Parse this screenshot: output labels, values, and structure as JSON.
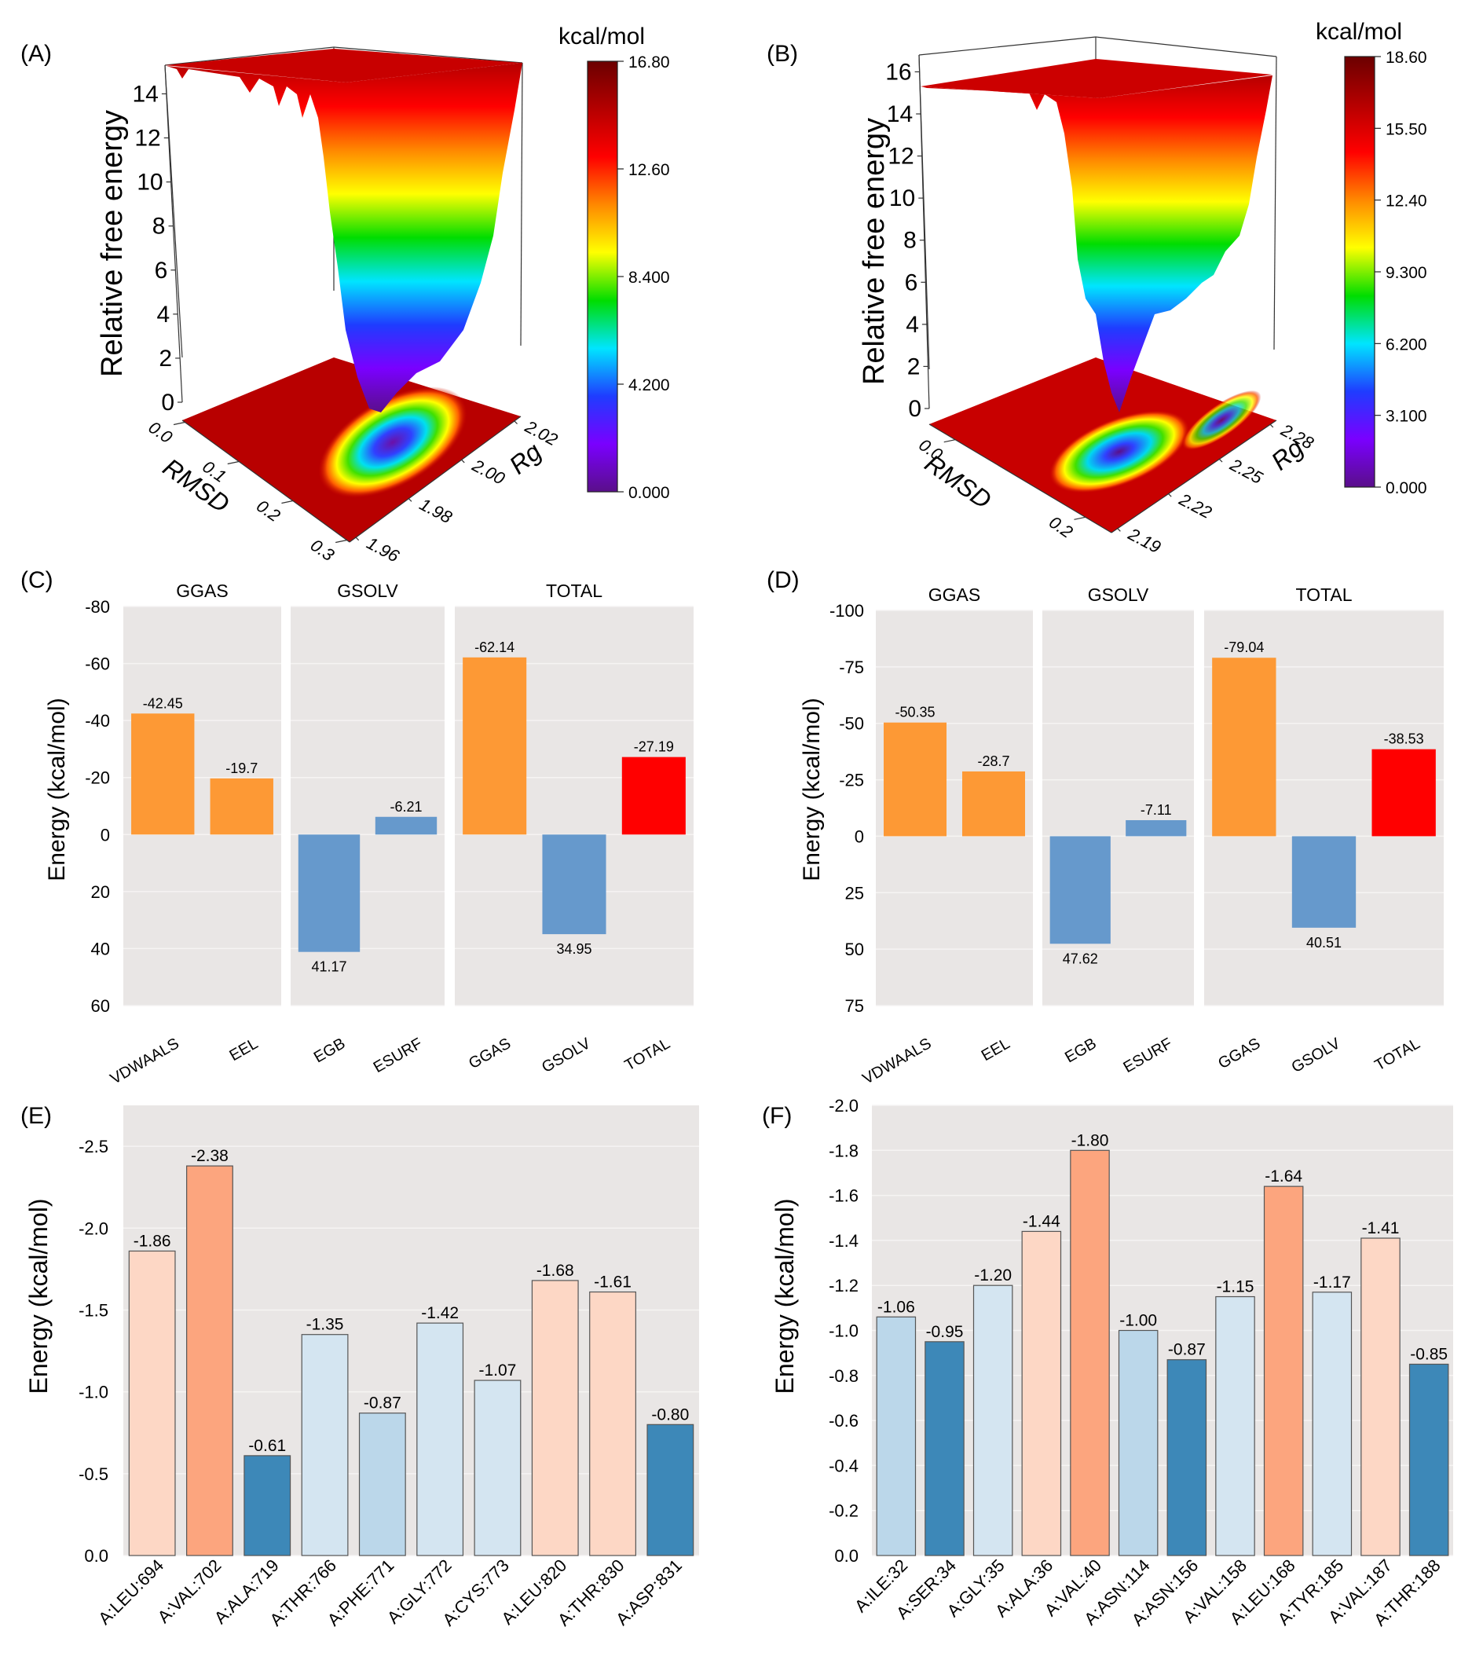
{
  "figure": {
    "panels": [
      "(A)",
      "(B)",
      "(C)",
      "(D)",
      "(E)",
      "(F)"
    ]
  },
  "chart_data": [
    {
      "id": "A",
      "panel_label": "(A)",
      "type": "surface3d",
      "zlabel": "Relative free energy",
      "xlabel": "RMSD",
      "ylabel": "Rg",
      "z_ticks": [
        "0",
        "2",
        "4",
        "6",
        "8",
        "10",
        "12",
        "14"
      ],
      "x_ticks": [
        "0.0",
        "0.1",
        "0.2",
        "0.3"
      ],
      "y_ticks": [
        "1.96",
        "1.98",
        "2.00",
        "2.02"
      ],
      "zlim": [
        0,
        15.3
      ],
      "minimum": {
        "rmsd": 0.2,
        "rg": 1.99,
        "energy": 0
      },
      "colorbar": {
        "title": "kcal/mol",
        "ticks": [
          "16.80",
          "12.60",
          "8.400",
          "4.200",
          "0.000"
        ],
        "range": [
          0,
          16.8
        ],
        "colormap": [
          "#5a0f8a",
          "#7a00ff",
          "#1f3cff",
          "#00e5ff",
          "#00dd00",
          "#ffff00",
          "#ff8800",
          "#ff0000",
          "#b50000",
          "#6b0000"
        ]
      }
    },
    {
      "id": "B",
      "panel_label": "(B)",
      "type": "surface3d",
      "zlabel": "Relative free energy",
      "xlabel": "RMSD",
      "ylabel": "Rg",
      "z_ticks": [
        "0",
        "2",
        "4",
        "6",
        "8",
        "10",
        "12",
        "14",
        "16"
      ],
      "x_ticks": [
        "0.0",
        "0.2"
      ],
      "y_ticks": [
        "2.19",
        "2.22",
        "2.25",
        "2.28"
      ],
      "zlim": [
        0,
        16.8
      ],
      "minimum": {
        "rmsd": 0.2,
        "rg": 2.23,
        "energy": 0
      },
      "colorbar": {
        "title": "kcal/mol",
        "ticks": [
          "18.60",
          "15.50",
          "12.40",
          "9.300",
          "6.200",
          "3.100",
          "0.000"
        ],
        "range": [
          0,
          18.6
        ],
        "colormap": [
          "#5a0f8a",
          "#7a00ff",
          "#1f3cff",
          "#00e5ff",
          "#00dd00",
          "#ffff00",
          "#ff8800",
          "#ff0000",
          "#b50000",
          "#6b0000"
        ]
      }
    },
    {
      "id": "C",
      "panel_label": "(C)",
      "type": "bar",
      "ylabel": "Energy (kcal/mol)",
      "ylim": [
        -80,
        60
      ],
      "y_inverted": true,
      "yticks": [
        -80,
        -60,
        -40,
        -20,
        0,
        20,
        40,
        60
      ],
      "ytick_labels": [
        "-80",
        "-60",
        "-40",
        "-20",
        "0",
        "20",
        "40",
        "60"
      ],
      "facets": [
        {
          "title": "GGAS",
          "bars": [
            {
              "category": "VDWAALS",
              "value": -42.45,
              "label": "-42.45",
              "color": "#fd9935"
            },
            {
              "category": "EEL",
              "value": -19.7,
              "label": "-19.7",
              "color": "#fd9935"
            }
          ]
        },
        {
          "title": "GSOLV",
          "bars": [
            {
              "category": "EGB",
              "value": 41.17,
              "label": "41.17",
              "color": "#6699cc"
            },
            {
              "category": "ESURF",
              "value": -6.21,
              "label": "-6.21",
              "color": "#6699cc"
            }
          ]
        },
        {
          "title": "TOTAL",
          "bars": [
            {
              "category": "GGAS",
              "value": -62.14,
              "label": "-62.14",
              "color": "#fd9935"
            },
            {
              "category": "GSOLV",
              "value": 34.95,
              "label": "34.95",
              "color": "#6699cc"
            },
            {
              "category": "TOTAL",
              "value": -27.19,
              "label": "-27.19",
              "color": "#ff0000"
            }
          ]
        }
      ]
    },
    {
      "id": "D",
      "panel_label": "(D)",
      "type": "bar",
      "ylabel": "Energy (kcal/mol)",
      "ylim": [
        -100,
        75
      ],
      "y_inverted": true,
      "yticks": [
        -100,
        -75,
        -50,
        -25,
        0,
        25,
        50,
        75
      ],
      "ytick_labels": [
        "-100",
        "-75",
        "-50",
        "-25",
        "0",
        "25",
        "50",
        "75"
      ],
      "facets": [
        {
          "title": "GGAS",
          "bars": [
            {
              "category": "VDWAALS",
              "value": -50.35,
              "label": "-50.35",
              "color": "#fd9935"
            },
            {
              "category": "EEL",
              "value": -28.7,
              "label": "-28.7",
              "color": "#fd9935"
            }
          ]
        },
        {
          "title": "GSOLV",
          "bars": [
            {
              "category": "EGB",
              "value": 47.62,
              "label": "47.62",
              "color": "#6699cc"
            },
            {
              "category": "ESURF",
              "value": -7.11,
              "label": "-7.11",
              "color": "#6699cc"
            }
          ]
        },
        {
          "title": "TOTAL",
          "bars": [
            {
              "category": "GGAS",
              "value": -79.04,
              "label": "-79.04",
              "color": "#fd9935"
            },
            {
              "category": "GSOLV",
              "value": 40.51,
              "label": "40.51",
              "color": "#6699cc"
            },
            {
              "category": "TOTAL",
              "value": -38.53,
              "label": "-38.53",
              "color": "#ff0000"
            }
          ]
        }
      ]
    },
    {
      "id": "E",
      "panel_label": "(E)",
      "type": "bar",
      "ylabel": "Energy (kcal/mol)",
      "ylim": [
        0,
        -2.75
      ],
      "y_inverted": true,
      "yticks": [
        0,
        -0.5,
        -1.0,
        -1.5,
        -2.0,
        -2.5
      ],
      "ytick_labels": [
        "0.0",
        "-0.5",
        "-1.0",
        "-1.5",
        "-2.0",
        "-2.5"
      ],
      "categories": [
        "A:LEU:694",
        "A:VAL:702",
        "A:ALA:719",
        "A:THR:766",
        "A:PHE:771",
        "A:GLY:772",
        "A:CYS:773",
        "A:LEU:820",
        "A:THR:830",
        "A:ASP:831"
      ],
      "values": [
        -1.86,
        -2.38,
        -0.61,
        -1.35,
        -0.87,
        -1.42,
        -1.07,
        -1.68,
        -1.61,
        -0.8
      ],
      "value_labels": [
        "-1.86",
        "-2.38",
        "-0.61",
        "-1.35",
        "-0.87",
        "-1.42",
        "-1.07",
        "-1.68",
        "-1.61",
        "-0.80"
      ],
      "colors": [
        "#fdd7c5",
        "#fca57e",
        "#3d88b8",
        "#d4e5f1",
        "#bbd7ea",
        "#d4e5f1",
        "#d4e5f1",
        "#fdd7c5",
        "#fdd7c5",
        "#3d88b8"
      ]
    },
    {
      "id": "F",
      "panel_label": "(F)",
      "type": "bar",
      "ylabel": "Energy (kcal/mol)",
      "ylim": [
        0,
        -2.0
      ],
      "y_inverted": true,
      "yticks": [
        0,
        -0.2,
        -0.4,
        -0.6,
        -0.8,
        -1.0,
        -1.2,
        -1.4,
        -1.6,
        -1.8,
        -2.0
      ],
      "ytick_labels": [
        "0.0",
        "-0.2",
        "-0.4",
        "-0.6",
        "-0.8",
        "-1.0",
        "-1.2",
        "-1.4",
        "-1.6",
        "-1.8",
        "-2.0"
      ],
      "categories": [
        "A:ILE:32",
        "A:SER:34",
        "A:GLY:35",
        "A:ALA:36",
        "A:VAL:40",
        "A:ASN:114",
        "A:ASN:156",
        "A:VAL:158",
        "A:LEU:168",
        "A:TYR:185",
        "A:VAL:187",
        "A:THR:188"
      ],
      "values": [
        -1.06,
        -0.95,
        -1.2,
        -1.44,
        -1.8,
        -1.0,
        -0.87,
        -1.15,
        -1.64,
        -1.17,
        -1.41,
        -0.85
      ],
      "value_labels": [
        "-1.06",
        "-0.95",
        "-1.20",
        "-1.44",
        "-1.80",
        "-1.00",
        "-0.87",
        "-1.15",
        "-1.64",
        "-1.17",
        "-1.41",
        "-0.85"
      ],
      "colors": [
        "#bbd7ea",
        "#3d88b8",
        "#d4e5f1",
        "#fdd7c5",
        "#fca57e",
        "#bbd7ea",
        "#3d88b8",
        "#d4e5f1",
        "#fca57e",
        "#d4e5f1",
        "#fdd7c5",
        "#3d88b8"
      ]
    }
  ]
}
